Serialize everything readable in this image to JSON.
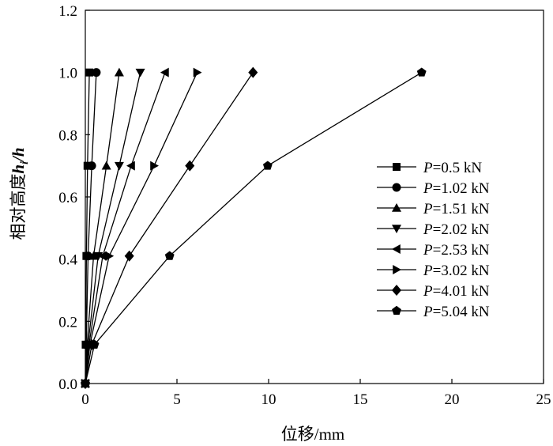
{
  "chart_data": {
    "type": "line",
    "title": "",
    "xlabel": "位移/mm",
    "ylabel": "相对高度h_i/h",
    "ylabel_parts": {
      "main": "相对高度",
      "var1": "h",
      "sub": "i",
      "slash": "/",
      "var2": "h"
    },
    "xlim": [
      0,
      25
    ],
    "ylim": [
      0,
      1.2
    ],
    "x_ticks": [
      0,
      5,
      10,
      15,
      20,
      25
    ],
    "x_tick_labels": [
      "0",
      "5",
      "10",
      "15",
      "20",
      "25"
    ],
    "y_ticks": [
      0,
      0.2,
      0.4,
      0.6,
      0.8,
      1.0,
      1.2
    ],
    "y_tick_labels": [
      "0.0",
      "0.2",
      "0.4",
      "0.6",
      "0.8",
      "1.0",
      "1.2"
    ],
    "grid": false,
    "legend_position": "right",
    "y": [
      0,
      0.125,
      0.41,
      0.7,
      1.0
    ],
    "series": [
      {
        "name": "P=0.5 kN",
        "label_var": "P",
        "label_rest": "=0.5 kN",
        "marker": "square",
        "x": [
          0,
          0.02,
          0.06,
          0.12,
          0.22
        ]
      },
      {
        "name": "P=1.02 kN",
        "label_var": "P",
        "label_rest": "=1.02 kN",
        "marker": "circle",
        "x": [
          0,
          0.05,
          0.15,
          0.35,
          0.6
        ]
      },
      {
        "name": "P=1.51 kN",
        "label_var": "P",
        "label_rest": "=1.51 kN",
        "marker": "triangle-up",
        "x": [
          0,
          0.1,
          0.45,
          1.15,
          1.85
        ]
      },
      {
        "name": "P=2.02 kN",
        "label_var": "P",
        "label_rest": "=2.02 kN",
        "marker": "triangle-down",
        "x": [
          0,
          0.15,
          0.7,
          1.85,
          3.0
        ]
      },
      {
        "name": "P=2.53 kN",
        "label_var": "P",
        "label_rest": "=2.53 kN",
        "marker": "triangle-left",
        "x": [
          0,
          0.2,
          0.95,
          2.5,
          4.35
        ]
      },
      {
        "name": "P=3.02 kN",
        "label_var": "P",
        "label_rest": "=3.02 kN",
        "marker": "triangle-right",
        "x": [
          0,
          0.25,
          1.3,
          3.75,
          6.1
        ]
      },
      {
        "name": "P=4.01 kN",
        "label_var": "P",
        "label_rest": "=4.01 kN",
        "marker": "diamond",
        "x": [
          0,
          0.35,
          2.4,
          5.7,
          9.15
        ]
      },
      {
        "name": "P=5.04 kN",
        "label_var": "P",
        "label_rest": "=5.04 kN",
        "marker": "pentagon",
        "x": [
          0,
          0.5,
          4.6,
          9.95,
          18.35
        ]
      }
    ],
    "colors": {
      "line": "#000000",
      "marker": "#000000",
      "background": "#ffffff"
    }
  }
}
